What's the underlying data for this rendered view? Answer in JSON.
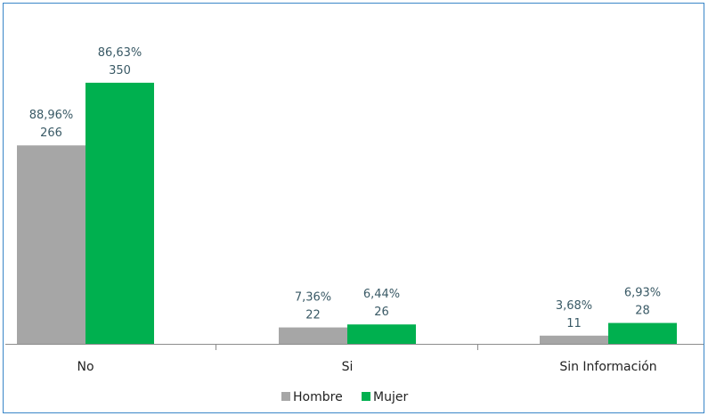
{
  "chart_data": {
    "type": "bar",
    "categories": [
      "No",
      "Si",
      "Sin Información"
    ],
    "series": [
      {
        "name": "Hombre",
        "color": "#a6a6a6",
        "values": [
          266,
          22,
          11
        ],
        "percent_labels": [
          "88,96%",
          "7,36%",
          "3,68%"
        ],
        "count_labels": [
          "266",
          "22",
          "11"
        ]
      },
      {
        "name": "Mujer",
        "color": "#00b04f",
        "values": [
          350,
          26,
          28
        ],
        "percent_labels": [
          "86,63%",
          "6,44%",
          "6,93%"
        ],
        "count_labels": [
          "350",
          "26",
          "28"
        ]
      }
    ],
    "ylim": [
      0,
      400
    ],
    "grid": false,
    "legend_position": "bottom",
    "axis_color": "#8c8c8c"
  }
}
